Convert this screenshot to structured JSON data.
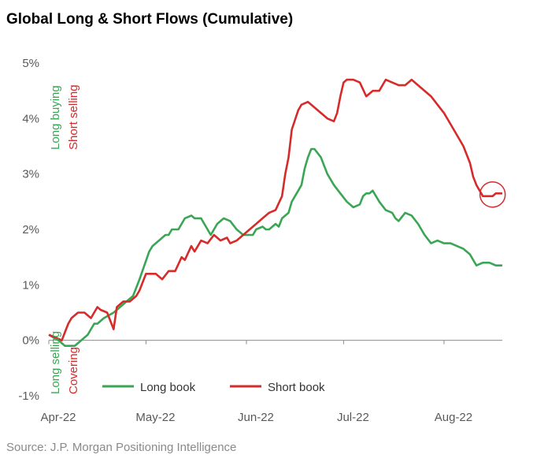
{
  "title": "Global Long & Short Flows (Cumulative)",
  "source": "Source: J.P. Morgan Positioning Intelligence",
  "chart_data": {
    "type": "line",
    "ylim": [
      -1,
      5
    ],
    "y_ticks": [
      "5%",
      "4%",
      "3%",
      "2%",
      "1%",
      "0%",
      "-1%"
    ],
    "y_tick_values": [
      5,
      4,
      3,
      2,
      1,
      0,
      -1
    ],
    "x_ticks": [
      "Apr-22",
      "May-22",
      "Jun-22",
      "Jul-22",
      "Aug-22"
    ],
    "x_tick_values": [
      0,
      30,
      61,
      91,
      122
    ],
    "annotations": {
      "long_buying": "Long buying",
      "short_selling": "Short selling",
      "long_selling": "Long selling",
      "covering": "Covering"
    },
    "series": [
      {
        "name": "Long book",
        "color": "#3aa655",
        "x": [
          0,
          3,
          5,
          8,
          10,
          12,
          14,
          15,
          17,
          20,
          22,
          24,
          26,
          28,
          31,
          32,
          34,
          36,
          37,
          38,
          40,
          42,
          44,
          45,
          47,
          49,
          50,
          52,
          54,
          56,
          58,
          60,
          62,
          63,
          64,
          66,
          67,
          68,
          70,
          71,
          72,
          74,
          75,
          76,
          77,
          78,
          79,
          80,
          81,
          82,
          84,
          86,
          88,
          90,
          92,
          94,
          96,
          97,
          98,
          99,
          100,
          102,
          104,
          106,
          107,
          108,
          110,
          112,
          114,
          116,
          118,
          120,
          122,
          124,
          126,
          128,
          130,
          131,
          132,
          134,
          136,
          138,
          140
        ],
        "values": [
          0.1,
          0.0,
          -0.1,
          -0.1,
          0.0,
          0.1,
          0.3,
          0.3,
          0.4,
          0.5,
          0.6,
          0.7,
          0.8,
          1.1,
          1.6,
          1.7,
          1.8,
          1.9,
          1.9,
          2.0,
          2.0,
          2.2,
          2.25,
          2.2,
          2.2,
          2.0,
          1.9,
          2.1,
          2.2,
          2.15,
          2.0,
          1.9,
          1.9,
          1.9,
          2.0,
          2.05,
          2.0,
          2.0,
          2.1,
          2.05,
          2.2,
          2.3,
          2.5,
          2.6,
          2.7,
          2.8,
          3.1,
          3.3,
          3.45,
          3.45,
          3.3,
          3.0,
          2.8,
          2.65,
          2.5,
          2.4,
          2.45,
          2.6,
          2.65,
          2.65,
          2.7,
          2.5,
          2.35,
          2.3,
          2.2,
          2.15,
          2.3,
          2.25,
          2.1,
          1.9,
          1.75,
          1.8,
          1.75,
          1.75,
          1.7,
          1.65,
          1.55,
          1.45,
          1.35,
          1.4,
          1.4,
          1.35,
          1.35
        ]
      },
      {
        "name": "Short book",
        "color": "#d52b2b",
        "x": [
          0,
          2,
          4,
          5,
          6,
          7,
          9,
          11,
          13,
          15,
          16,
          18,
          20,
          21,
          23,
          25,
          27,
          28,
          30,
          31,
          33,
          35,
          37,
          39,
          41,
          42,
          44,
          45,
          46,
          47,
          49,
          51,
          53,
          55,
          56,
          58,
          60,
          62,
          64,
          66,
          68,
          70,
          72,
          73,
          74,
          75,
          77,
          78,
          80,
          82,
          84,
          86,
          88,
          89,
          90,
          91,
          92,
          94,
          96,
          98,
          100,
          102,
          104,
          106,
          108,
          110,
          112,
          114,
          116,
          118,
          120,
          122,
          124,
          126,
          128,
          130,
          131,
          132,
          134,
          136,
          137,
          138,
          140
        ],
        "values": [
          0.1,
          0.05,
          0.0,
          0.15,
          0.3,
          0.4,
          0.5,
          0.5,
          0.4,
          0.6,
          0.55,
          0.5,
          0.2,
          0.6,
          0.7,
          0.7,
          0.8,
          0.9,
          1.2,
          1.2,
          1.2,
          1.1,
          1.25,
          1.25,
          1.5,
          1.45,
          1.7,
          1.6,
          1.7,
          1.8,
          1.75,
          1.9,
          1.8,
          1.85,
          1.75,
          1.8,
          1.9,
          2.0,
          2.1,
          2.2,
          2.3,
          2.35,
          2.6,
          3.0,
          3.3,
          3.8,
          4.15,
          4.25,
          4.3,
          4.2,
          4.1,
          4.0,
          3.95,
          4.1,
          4.4,
          4.65,
          4.7,
          4.7,
          4.65,
          4.4,
          4.5,
          4.5,
          4.7,
          4.65,
          4.6,
          4.6,
          4.7,
          4.6,
          4.5,
          4.4,
          4.25,
          4.1,
          3.9,
          3.7,
          3.5,
          3.2,
          2.95,
          2.8,
          2.6,
          2.6,
          2.6,
          2.65,
          2.65
        ]
      }
    ],
    "highlight": {
      "series": "Short book",
      "x": 137,
      "y": 2.63
    }
  }
}
